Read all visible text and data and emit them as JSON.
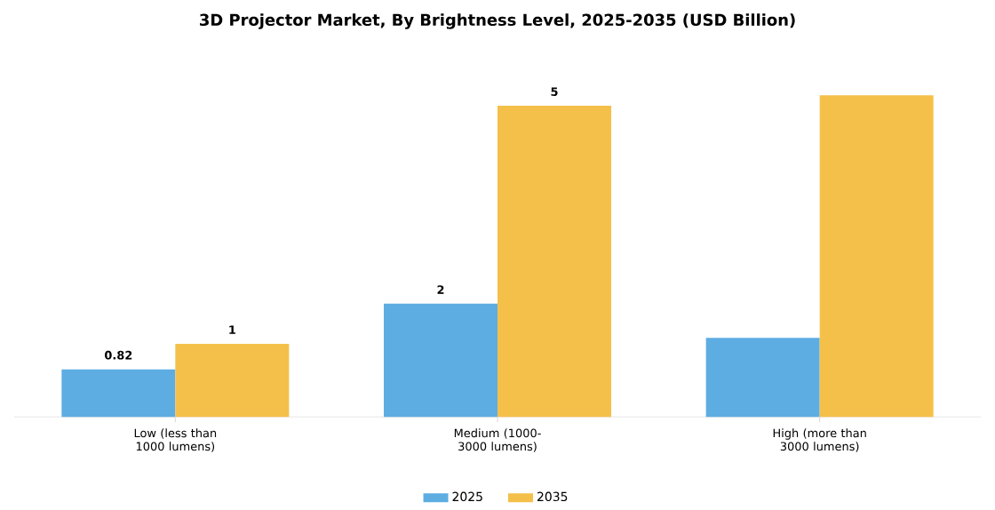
{
  "chart_data": {
    "type": "bar",
    "title": "3D Projector Market, By Brightness Level, 2025-2035 (USD Billion)",
    "categories": [
      "Low (less than 1000 lumens)",
      "Medium (1000-3000 lumens)",
      "High (more than 3000 lumens)"
    ],
    "legend": "bottom",
    "series": [
      {
        "name": "2025",
        "color": "#5dade2",
        "values": [
          0.82,
          1.95,
          1.36
        ],
        "value_labels": [
          "0.82",
          "2",
          null
        ]
      },
      {
        "name": "2035",
        "color": "#f5c04a",
        "values": [
          1.26,
          5.36,
          5.54
        ],
        "value_labels": [
          "1",
          "5",
          null
        ]
      }
    ]
  }
}
